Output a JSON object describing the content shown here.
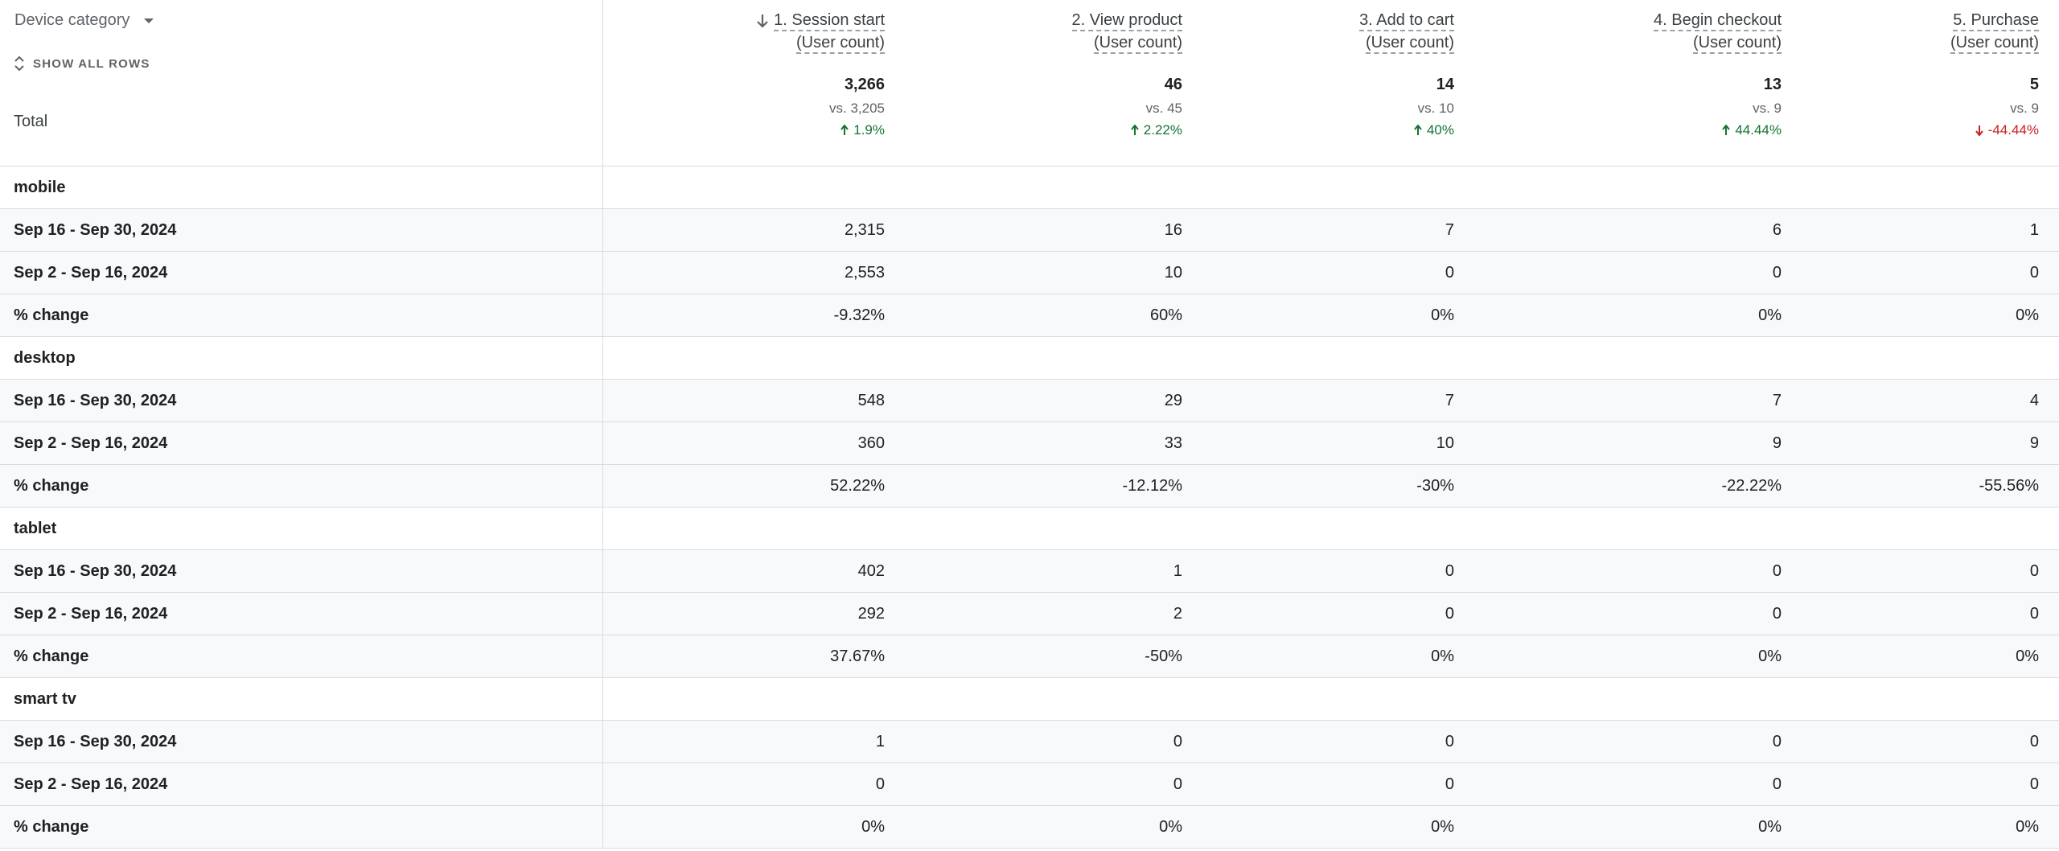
{
  "dimension_selector": {
    "label": "Device category",
    "icon": "caret-down-icon"
  },
  "show_all_rows": {
    "label": "SHOW ALL ROWS",
    "icon": "expand-collapse-icon"
  },
  "total_label": "Total",
  "columns": [
    {
      "line1": "1. Session start",
      "line2": "(User count)",
      "sorted": true,
      "total": "3,266",
      "vs": "vs. 3,205",
      "change": "1.9%",
      "direction": "up"
    },
    {
      "line1": "2. View product",
      "line2": "(User count)",
      "sorted": false,
      "total": "46",
      "vs": "vs. 45",
      "change": "2.22%",
      "direction": "up"
    },
    {
      "line1": "3. Add to cart",
      "line2": "(User count)",
      "sorted": false,
      "total": "14",
      "vs": "vs. 10",
      "change": "40%",
      "direction": "up"
    },
    {
      "line1": "4. Begin checkout",
      "line2": "(User count)",
      "sorted": false,
      "total": "13",
      "vs": "vs. 9",
      "change": "44.44%",
      "direction": "up"
    },
    {
      "line1": "5. Purchase",
      "line2": "(User count)",
      "sorted": false,
      "total": "5",
      "vs": "vs. 9",
      "change": "-44.44%",
      "direction": "down"
    }
  ],
  "colors": {
    "up": "#137333",
    "down": "#c5221f",
    "border": "#dadce0",
    "alt_row": "#f8f9fa"
  },
  "groups": [
    {
      "name": "mobile",
      "rows": [
        {
          "label": "Sep 16 - Sep 30, 2024",
          "values": [
            "2,315",
            "16",
            "7",
            "6",
            "1"
          ]
        },
        {
          "label": "Sep 2 - Sep 16, 2024",
          "values": [
            "2,553",
            "10",
            "0",
            "0",
            "0"
          ]
        },
        {
          "label": "% change",
          "values": [
            "-9.32%",
            "60%",
            "0%",
            "0%",
            "0%"
          ]
        }
      ]
    },
    {
      "name": "desktop",
      "rows": [
        {
          "label": "Sep 16 - Sep 30, 2024",
          "values": [
            "548",
            "29",
            "7",
            "7",
            "4"
          ]
        },
        {
          "label": "Sep 2 - Sep 16, 2024",
          "values": [
            "360",
            "33",
            "10",
            "9",
            "9"
          ]
        },
        {
          "label": "% change",
          "values": [
            "52.22%",
            "-12.12%",
            "-30%",
            "-22.22%",
            "-55.56%"
          ]
        }
      ]
    },
    {
      "name": "tablet",
      "rows": [
        {
          "label": "Sep 16 - Sep 30, 2024",
          "values": [
            "402",
            "1",
            "0",
            "0",
            "0"
          ]
        },
        {
          "label": "Sep 2 - Sep 16, 2024",
          "values": [
            "292",
            "2",
            "0",
            "0",
            "0"
          ]
        },
        {
          "label": "% change",
          "values": [
            "37.67%",
            "-50%",
            "0%",
            "0%",
            "0%"
          ]
        }
      ]
    },
    {
      "name": "smart tv",
      "rows": [
        {
          "label": "Sep 16 - Sep 30, 2024",
          "values": [
            "1",
            "0",
            "0",
            "0",
            "0"
          ]
        },
        {
          "label": "Sep 2 - Sep 16, 2024",
          "values": [
            "0",
            "0",
            "0",
            "0",
            "0"
          ]
        },
        {
          "label": "% change",
          "values": [
            "0%",
            "0%",
            "0%",
            "0%",
            "0%"
          ]
        }
      ]
    }
  ]
}
